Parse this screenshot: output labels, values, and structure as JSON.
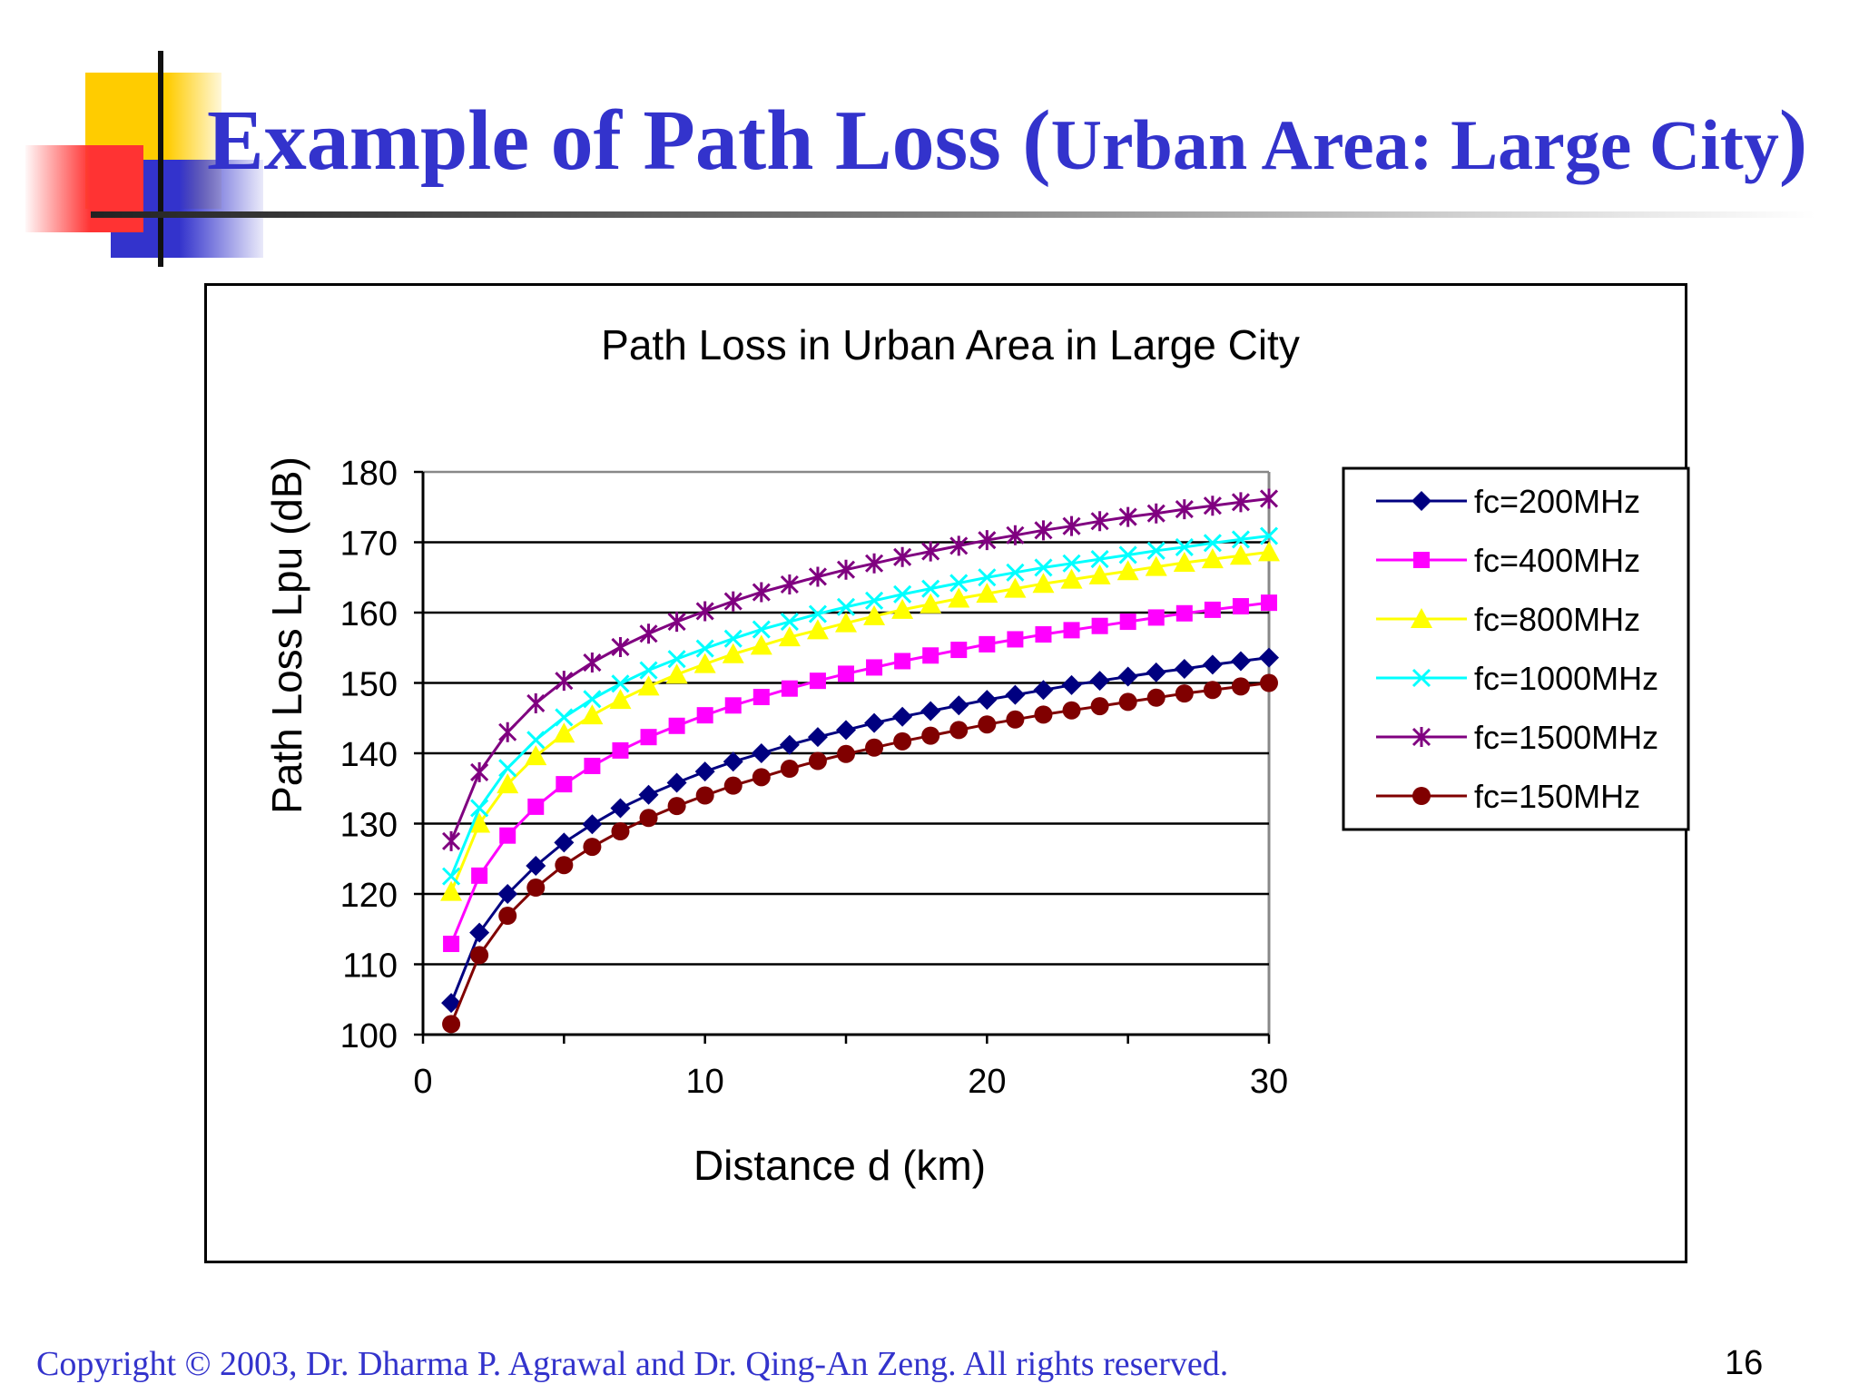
{
  "slide": {
    "title_main": "Example of Path Loss (",
    "title_sub": "Urban Area: Large City",
    "title_close": ")",
    "footer": "Copyright © 2003, Dr. Dharma P. Agrawal and Dr. Qing-An Zeng. All rights reserved.",
    "page_number": "16"
  },
  "colors": {
    "title": "#3333cc",
    "deco_yellow": "#ffcc00",
    "deco_blue": "#3333cc",
    "deco_red": "#ff3333"
  },
  "chart_data": {
    "type": "line",
    "title": "Path Loss in Urban Area in Large City",
    "xlabel": "Distance d (km)",
    "ylabel": "Path Loss Lpu (dB)",
    "xlim": [
      0,
      30
    ],
    "ylim": [
      100,
      180
    ],
    "xticks": [
      0,
      10,
      20,
      30
    ],
    "yticks": [
      100,
      110,
      120,
      130,
      140,
      150,
      160,
      170,
      180
    ],
    "grid": "horizontal",
    "legend_position": "right",
    "x": [
      1,
      2,
      3,
      4,
      5,
      6,
      7,
      8,
      9,
      10,
      11,
      12,
      13,
      14,
      15,
      16,
      17,
      18,
      19,
      20,
      21,
      22,
      23,
      24,
      25,
      26,
      27,
      28,
      29,
      30
    ],
    "series": [
      {
        "name": "fc=200MHz",
        "color": "#000080",
        "marker": "diamond",
        "values": [
          104.5,
          114.5,
          120.0,
          124.0,
          127.3,
          129.9,
          132.2,
          134.1,
          135.8,
          137.4,
          138.8,
          140.0,
          141.2,
          142.3,
          143.3,
          144.3,
          145.2,
          146.0,
          146.8,
          147.6,
          148.3,
          149.0,
          149.7,
          150.3,
          150.9,
          151.5,
          152.0,
          152.6,
          153.1,
          153.6
        ]
      },
      {
        "name": "fc=400MHz",
        "color": "#ff00ff",
        "marker": "square",
        "values": [
          112.9,
          122.6,
          128.3,
          132.4,
          135.6,
          138.2,
          140.4,
          142.3,
          143.9,
          145.4,
          146.8,
          148.0,
          149.2,
          150.3,
          151.3,
          152.2,
          153.1,
          153.9,
          154.7,
          155.5,
          156.2,
          156.9,
          157.5,
          158.1,
          158.7,
          159.3,
          159.9,
          160.4,
          160.9,
          161.4
        ]
      },
      {
        "name": "fc=800MHz",
        "color": "#ffff00",
        "marker": "triangle",
        "values": [
          120.3,
          130.0,
          135.6,
          139.6,
          142.8,
          145.4,
          147.6,
          149.5,
          151.2,
          152.7,
          154.1,
          155.3,
          156.5,
          157.5,
          158.5,
          159.5,
          160.4,
          161.2,
          162.0,
          162.7,
          163.4,
          164.1,
          164.7,
          165.3,
          165.9,
          166.5,
          167.1,
          167.6,
          168.1,
          168.6
        ]
      },
      {
        "name": "fc=1000MHz",
        "color": "#00ffff",
        "marker": "x",
        "values": [
          122.5,
          132.2,
          137.9,
          141.9,
          145.1,
          147.7,
          149.9,
          151.8,
          153.4,
          154.9,
          156.3,
          157.6,
          158.7,
          159.8,
          160.8,
          161.7,
          162.6,
          163.4,
          164.2,
          165.0,
          165.7,
          166.4,
          167.0,
          167.6,
          168.2,
          168.8,
          169.3,
          169.9,
          170.4,
          170.9
        ]
      },
      {
        "name": "fc=1500MHz",
        "color": "#800080",
        "marker": "star",
        "values": [
          127.5,
          137.3,
          143.0,
          147.1,
          150.3,
          152.9,
          155.1,
          157.0,
          158.7,
          160.2,
          161.6,
          162.9,
          164.0,
          165.1,
          166.1,
          167.0,
          167.9,
          168.7,
          169.5,
          170.3,
          171.0,
          171.7,
          172.3,
          173.0,
          173.6,
          174.1,
          174.7,
          175.2,
          175.7,
          176.2
        ]
      },
      {
        "name": "fc=150MHz",
        "color": "#800000",
        "marker": "circle",
        "values": [
          101.5,
          111.3,
          116.9,
          120.9,
          124.1,
          126.7,
          128.9,
          130.8,
          132.5,
          134.0,
          135.4,
          136.6,
          137.8,
          138.9,
          139.9,
          140.8,
          141.7,
          142.5,
          143.3,
          144.1,
          144.8,
          145.5,
          146.1,
          146.7,
          147.3,
          147.9,
          148.5,
          149.0,
          149.5,
          150.0
        ]
      }
    ]
  }
}
